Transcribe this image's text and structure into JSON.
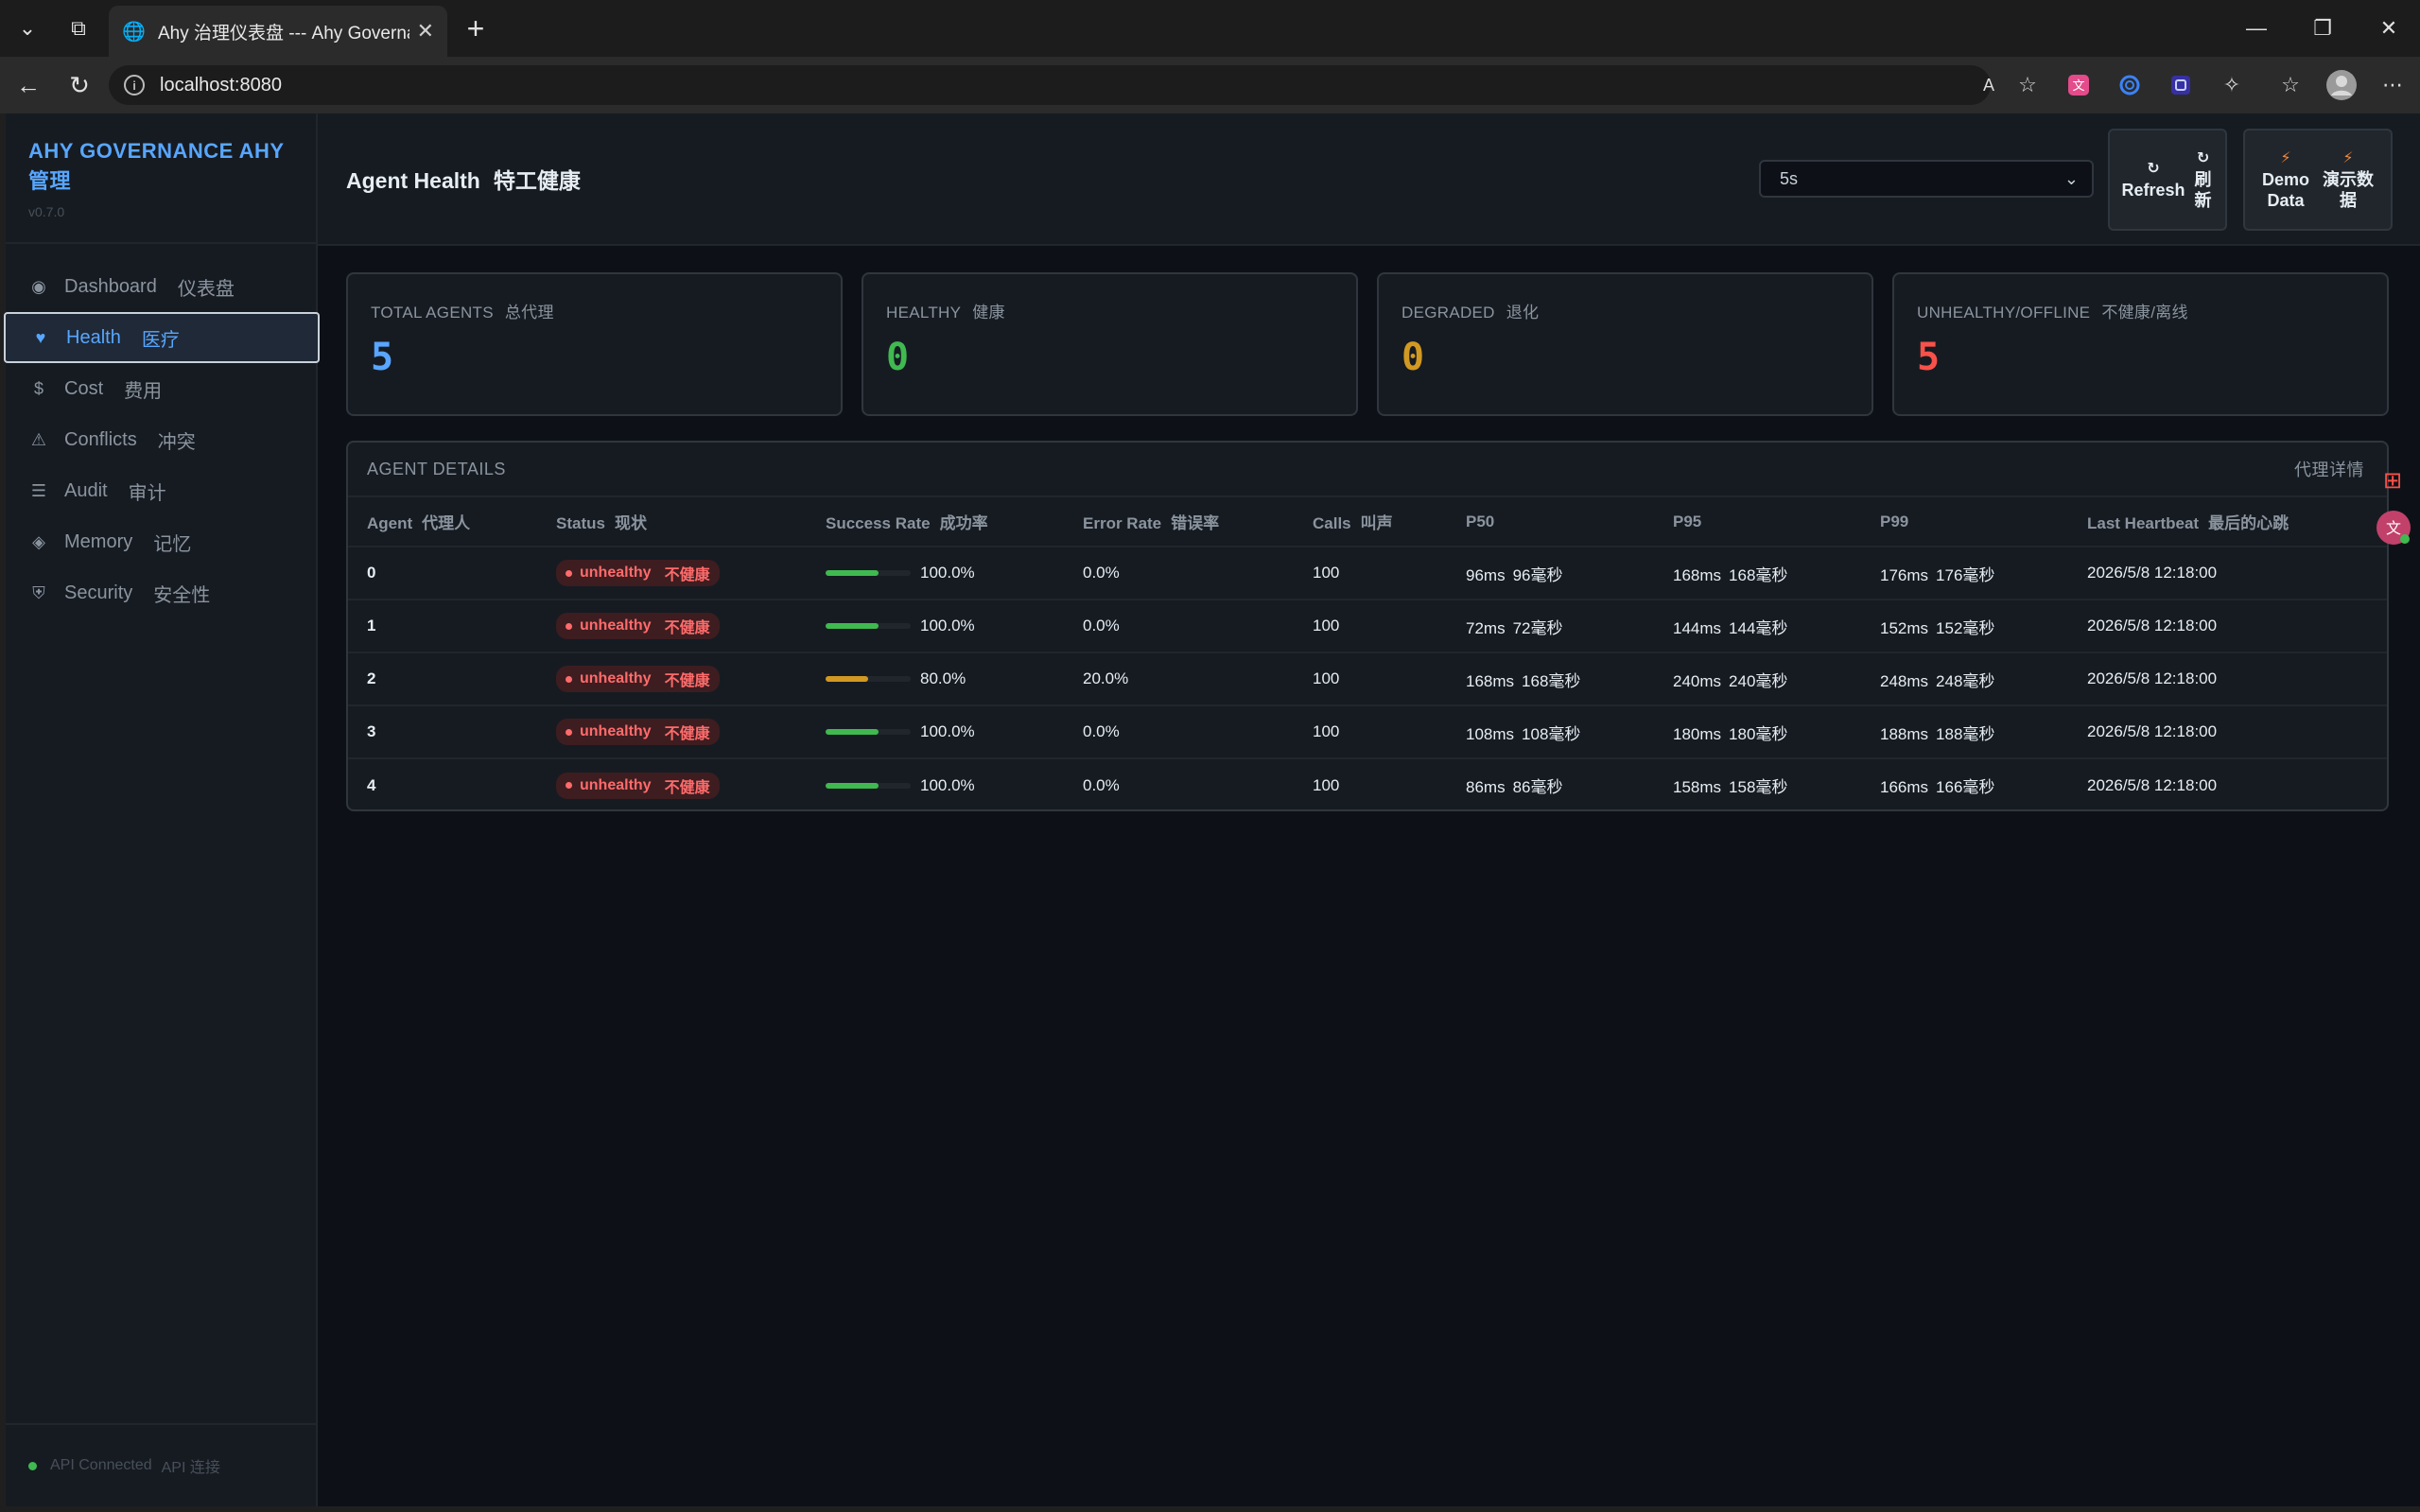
{
  "browser": {
    "tab_title": "Ahy 治理仪表盘 --- Ahy Governance",
    "address": "localhost:8080"
  },
  "sidebar": {
    "brand": "AHY GOVERNANCE  AHY 管理",
    "version": "v0.7.0",
    "items": [
      {
        "label": "Dashboard",
        "zh": "仪表盘",
        "icon": "dashboard-icon"
      },
      {
        "label": "Health",
        "zh": "医疗",
        "icon": "heart-icon"
      },
      {
        "label": "Cost",
        "zh": "费用",
        "icon": "dollar-icon"
      },
      {
        "label": "Conflicts",
        "zh": "冲突",
        "icon": "warning-icon"
      },
      {
        "label": "Audit",
        "zh": "审计",
        "icon": "list-icon"
      },
      {
        "label": "Memory",
        "zh": "记忆",
        "icon": "diamond-icon"
      },
      {
        "label": "Security",
        "zh": "安全性",
        "icon": "shield-icon"
      }
    ],
    "api_status": "API Connected",
    "api_status_zh": "API 连接"
  },
  "header": {
    "title": "Agent Health",
    "title_zh": "特工健康",
    "interval": "5s",
    "refresh_label": "Refresh",
    "refresh_zh": "刷新",
    "demo_label": "Demo Data",
    "demo_zh": "演示数据"
  },
  "stats": [
    {
      "label": "TOTAL AGENTS",
      "zh": "总代理",
      "value": "5",
      "color": "#58a6ff"
    },
    {
      "label": "HEALTHY",
      "zh": "健康",
      "value": "0",
      "color": "#3fb950"
    },
    {
      "label": "DEGRADED",
      "zh": "退化",
      "value": "0",
      "color": "#d29922"
    },
    {
      "label": "UNHEALTHY/OFFLINE",
      "zh": "不健康/离线",
      "value": "5",
      "color": "#f85149"
    }
  ],
  "details": {
    "title": "AGENT DETAILS",
    "title_zh": "代理详情",
    "columns": [
      {
        "label": "Agent",
        "zh": "代理人"
      },
      {
        "label": "Status",
        "zh": "现状"
      },
      {
        "label": "Success Rate",
        "zh": "成功率"
      },
      {
        "label": "Error Rate",
        "zh": "错误率"
      },
      {
        "label": "Calls",
        "zh": "叫声"
      },
      {
        "label": "P50",
        "zh": ""
      },
      {
        "label": "P95",
        "zh": ""
      },
      {
        "label": "P99",
        "zh": ""
      },
      {
        "label": "Last Heartbeat",
        "zh": "最后的心跳"
      }
    ],
    "rows": [
      {
        "agent": "0",
        "status": "unhealthy",
        "status_zh": "不健康",
        "success": "100.0%",
        "success_frac": 1.0,
        "error": "0.0%",
        "calls": "100",
        "p50": "96ms",
        "p50_zh": "96毫秒",
        "p95": "168ms",
        "p95_zh": "168毫秒",
        "p99": "176ms",
        "p99_zh": "176毫秒",
        "heartbeat": "2026/5/8 12:18:00"
      },
      {
        "agent": "1",
        "status": "unhealthy",
        "status_zh": "不健康",
        "success": "100.0%",
        "success_frac": 1.0,
        "error": "0.0%",
        "calls": "100",
        "p50": "72ms",
        "p50_zh": "72毫秒",
        "p95": "144ms",
        "p95_zh": "144毫秒",
        "p99": "152ms",
        "p99_zh": "152毫秒",
        "heartbeat": "2026/5/8 12:18:00"
      },
      {
        "agent": "2",
        "status": "unhealthy",
        "status_zh": "不健康",
        "success": "80.0%",
        "success_frac": 0.8,
        "error": "20.0%",
        "calls": "100",
        "p50": "168ms",
        "p50_zh": "168毫秒",
        "p95": "240ms",
        "p95_zh": "240毫秒",
        "p99": "248ms",
        "p99_zh": "248毫秒",
        "heartbeat": "2026/5/8 12:18:00"
      },
      {
        "agent": "3",
        "status": "unhealthy",
        "status_zh": "不健康",
        "success": "100.0%",
        "success_frac": 1.0,
        "error": "0.0%",
        "calls": "100",
        "p50": "108ms",
        "p50_zh": "108毫秒",
        "p95": "180ms",
        "p95_zh": "180毫秒",
        "p99": "188ms",
        "p99_zh": "188毫秒",
        "heartbeat": "2026/5/8 12:18:00"
      },
      {
        "agent": "4",
        "status": "unhealthy",
        "status_zh": "不健康",
        "success": "100.0%",
        "success_frac": 1.0,
        "error": "0.0%",
        "calls": "100",
        "p50": "86ms",
        "p50_zh": "86毫秒",
        "p95": "158ms",
        "p95_zh": "158毫秒",
        "p99": "166ms",
        "p99_zh": "166毫秒",
        "heartbeat": "2026/5/8 12:18:00"
      }
    ]
  },
  "colors": {
    "accent": "#58a6ff",
    "bar_good": "#3fb950",
    "bar_warn": "#d29922",
    "danger": "#f85149"
  }
}
